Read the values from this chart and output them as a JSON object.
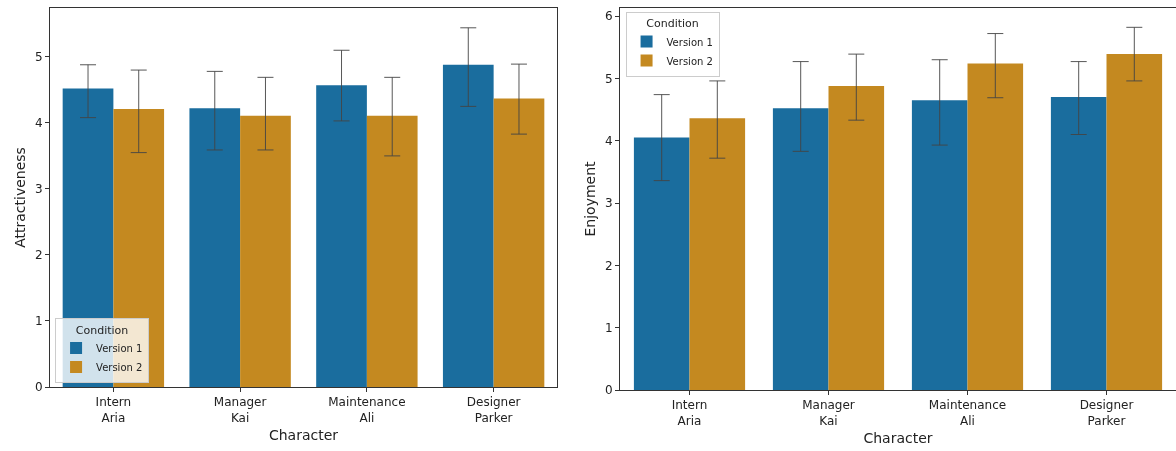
{
  "chart_data": [
    {
      "type": "bar",
      "xlabel": "Character",
      "ylabel": "Attractiveness",
      "categories": [
        "Intern\nAria",
        "Manager\nKai",
        "Maintenance\nAli",
        "Designer\nParker"
      ],
      "ylim": [
        0,
        5.74
      ],
      "yticks": [
        0,
        1,
        2,
        3,
        4,
        5
      ],
      "grid": false,
      "legend": "bottom left",
      "legend_title": "Condition",
      "series": [
        {
          "name": "Version 1",
          "color": "#1a6d9e",
          "values": [
            4.52,
            4.22,
            4.57,
            4.88
          ],
          "errors": [
            [
              4.08,
              4.88
            ],
            [
              3.59,
              4.78
            ],
            [
              4.03,
              5.1
            ],
            [
              4.25,
              5.44
            ]
          ]
        },
        {
          "name": "Version 2",
          "color": "#c48920",
          "values": [
            4.21,
            4.11,
            4.11,
            4.37
          ],
          "errors": [
            [
              3.55,
              4.8
            ],
            [
              3.59,
              4.69
            ],
            [
              3.5,
              4.69
            ],
            [
              3.83,
              4.89
            ]
          ]
        }
      ]
    },
    {
      "type": "bar",
      "xlabel": "Character",
      "ylabel": "Enjoyment",
      "categories": [
        "Intern\nAria",
        "Manager\nKai",
        "Maintenance\nAli",
        "Designer\nParker"
      ],
      "ylim": [
        0,
        6.13
      ],
      "yticks": [
        0,
        1,
        2,
        3,
        4,
        5,
        6
      ],
      "grid": false,
      "legend": "top left",
      "legend_title": "Condition",
      "series": [
        {
          "name": "Version 1",
          "color": "#1a6d9e",
          "values": [
            4.05,
            4.52,
            4.65,
            4.7
          ],
          "errors": [
            [
              3.36,
              4.74
            ],
            [
              3.83,
              5.27
            ],
            [
              3.93,
              5.3
            ],
            [
              4.1,
              5.27
            ]
          ]
        },
        {
          "name": "Version 2",
          "color": "#c48920",
          "values": [
            4.36,
            4.88,
            5.24,
            5.39
          ],
          "errors": [
            [
              3.72,
              4.96
            ],
            [
              4.33,
              5.39
            ],
            [
              4.69,
              5.72
            ],
            [
              4.96,
              5.82
            ]
          ]
        }
      ]
    }
  ]
}
